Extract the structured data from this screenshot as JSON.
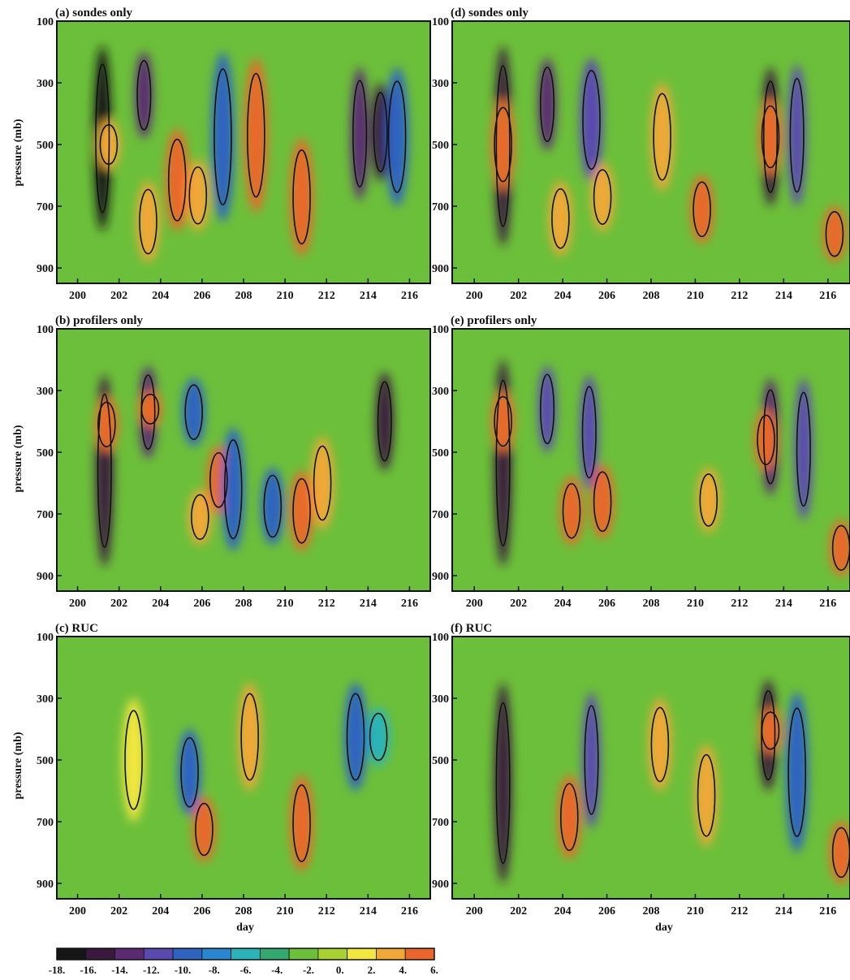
{
  "chart_data": [
    {
      "type": "heatmap",
      "title": "(a) sondes only",
      "xlabel": "",
      "ylabel": "pressure (mb)",
      "xlim": [
        199,
        217
      ],
      "ylim": [
        950,
        100
      ],
      "xticks": [
        "200",
        "202",
        "204",
        "206",
        "208",
        "210",
        "212",
        "214",
        "216"
      ],
      "yticks": [
        "100",
        "300",
        "500",
        "700",
        "900"
      ],
      "features": [
        {
          "day": 201.2,
          "p_top": 180,
          "p_bot": 780,
          "value": -18
        },
        {
          "day": 201.5,
          "p_top": 420,
          "p_bot": 580,
          "value": 4
        },
        {
          "day": 203.2,
          "p_top": 200,
          "p_bot": 480,
          "value": -14
        },
        {
          "day": 203.4,
          "p_top": 620,
          "p_bot": 880,
          "value": 5
        },
        {
          "day": 204.8,
          "p_top": 450,
          "p_bot": 780,
          "value": 6
        },
        {
          "day": 205.8,
          "p_top": 550,
          "p_bot": 780,
          "value": 5
        },
        {
          "day": 207.0,
          "p_top": 200,
          "p_bot": 750,
          "value": -10
        },
        {
          "day": 208.6,
          "p_top": 220,
          "p_bot": 720,
          "value": 6
        },
        {
          "day": 210.8,
          "p_top": 480,
          "p_bot": 860,
          "value": 6
        },
        {
          "day": 213.6,
          "p_top": 250,
          "p_bot": 680,
          "value": -14
        },
        {
          "day": 214.6,
          "p_top": 300,
          "p_bot": 620,
          "value": -16
        },
        {
          "day": 215.4,
          "p_top": 250,
          "p_bot": 700,
          "value": -10
        }
      ]
    },
    {
      "type": "heatmap",
      "title": "(b) profilers only",
      "xlabel": "",
      "ylabel": "pressure (mb)",
      "xlim": [
        199,
        217
      ],
      "ylim": [
        950,
        100
      ],
      "xticks": [
        "200",
        "202",
        "204",
        "206",
        "208",
        "210",
        "212",
        "214",
        "216"
      ],
      "yticks": [
        "100",
        "300",
        "500",
        "700",
        "900"
      ],
      "features": [
        {
          "day": 201.3,
          "p_top": 250,
          "p_bot": 870,
          "value": -16
        },
        {
          "day": 201.4,
          "p_top": 320,
          "p_bot": 500,
          "value": 6
        },
        {
          "day": 203.4,
          "p_top": 220,
          "p_bot": 520,
          "value": -14
        },
        {
          "day": 203.5,
          "p_top": 300,
          "p_bot": 420,
          "value": 6
        },
        {
          "day": 205.6,
          "p_top": 260,
          "p_bot": 480,
          "value": -10
        },
        {
          "day": 205.9,
          "p_top": 620,
          "p_bot": 800,
          "value": 5
        },
        {
          "day": 206.8,
          "p_top": 480,
          "p_bot": 700,
          "value": 6
        },
        {
          "day": 207.5,
          "p_top": 420,
          "p_bot": 820,
          "value": -9
        },
        {
          "day": 209.4,
          "p_top": 550,
          "p_bot": 800,
          "value": -9
        },
        {
          "day": 210.8,
          "p_top": 560,
          "p_bot": 820,
          "value": 6
        },
        {
          "day": 211.8,
          "p_top": 450,
          "p_bot": 750,
          "value": 5
        },
        {
          "day": 214.8,
          "p_top": 240,
          "p_bot": 560,
          "value": -16
        }
      ]
    },
    {
      "type": "heatmap",
      "title": "(c) RUC",
      "xlabel": "day",
      "ylabel": "pressure (mb)",
      "xlim": [
        199,
        217
      ],
      "ylim": [
        950,
        100
      ],
      "xticks": [
        "200",
        "202",
        "204",
        "206",
        "208",
        "210",
        "212",
        "214",
        "216"
      ],
      "yticks": [
        "100",
        "300",
        "500",
        "700",
        "900"
      ],
      "features": [
        {
          "day": 202.7,
          "p_top": 300,
          "p_bot": 700,
          "value": 3
        },
        {
          "day": 205.4,
          "p_top": 400,
          "p_bot": 680,
          "value": -9
        },
        {
          "day": 206.1,
          "p_top": 620,
          "p_bot": 830,
          "value": 6
        },
        {
          "day": 208.3,
          "p_top": 250,
          "p_bot": 600,
          "value": 5
        },
        {
          "day": 210.8,
          "p_top": 550,
          "p_bot": 860,
          "value": 6
        },
        {
          "day": 213.4,
          "p_top": 250,
          "p_bot": 600,
          "value": -9
        },
        {
          "day": 214.5,
          "p_top": 330,
          "p_bot": 520,
          "value": -6
        }
      ]
    },
    {
      "type": "heatmap",
      "title": "(d) sondes only",
      "xlabel": "",
      "ylabel": "",
      "xlim": [
        199,
        217
      ],
      "ylim": [
        950,
        100
      ],
      "xticks": [
        "200",
        "202",
        "204",
        "206",
        "208",
        "210",
        "212",
        "214",
        "216"
      ],
      "yticks": [
        "100",
        "300",
        "500",
        "700",
        "900"
      ],
      "features": [
        {
          "day": 201.3,
          "p_top": 180,
          "p_bot": 830,
          "value": -16
        },
        {
          "day": 201.3,
          "p_top": 350,
          "p_bot": 650,
          "value": 6
        },
        {
          "day": 203.3,
          "p_top": 220,
          "p_bot": 520,
          "value": -14
        },
        {
          "day": 203.9,
          "p_top": 620,
          "p_bot": 860,
          "value": 5
        },
        {
          "day": 205.3,
          "p_top": 220,
          "p_bot": 620,
          "value": -11
        },
        {
          "day": 205.8,
          "p_top": 560,
          "p_bot": 780,
          "value": 5
        },
        {
          "day": 208.5,
          "p_top": 300,
          "p_bot": 650,
          "value": 5
        },
        {
          "day": 210.3,
          "p_top": 600,
          "p_bot": 820,
          "value": 6
        },
        {
          "day": 213.4,
          "p_top": 250,
          "p_bot": 700,
          "value": -16
        },
        {
          "day": 213.4,
          "p_top": 350,
          "p_bot": 600,
          "value": 6
        },
        {
          "day": 214.6,
          "p_top": 240,
          "p_bot": 700,
          "value": -12
        },
        {
          "day": 216.3,
          "p_top": 700,
          "p_bot": 880,
          "value": 6
        }
      ]
    },
    {
      "type": "heatmap",
      "title": "(e) profilers only",
      "xlabel": "",
      "ylabel": "",
      "xlim": [
        199,
        217
      ],
      "ylim": [
        950,
        100
      ],
      "xticks": [
        "200",
        "202",
        "204",
        "206",
        "208",
        "210",
        "212",
        "214",
        "216"
      ],
      "yticks": [
        "100",
        "300",
        "500",
        "700",
        "900"
      ],
      "features": [
        {
          "day": 201.3,
          "p_top": 200,
          "p_bot": 870,
          "value": -16
        },
        {
          "day": 201.3,
          "p_top": 300,
          "p_bot": 500,
          "value": 6
        },
        {
          "day": 203.3,
          "p_top": 220,
          "p_bot": 500,
          "value": -12
        },
        {
          "day": 204.4,
          "p_top": 580,
          "p_bot": 800,
          "value": 6
        },
        {
          "day": 205.2,
          "p_top": 250,
          "p_bot": 620,
          "value": -12
        },
        {
          "day": 205.8,
          "p_top": 540,
          "p_bot": 780,
          "value": 6
        },
        {
          "day": 210.6,
          "p_top": 550,
          "p_bot": 760,
          "value": 5
        },
        {
          "day": 213.4,
          "p_top": 260,
          "p_bot": 640,
          "value": -14
        },
        {
          "day": 213.2,
          "p_top": 360,
          "p_bot": 560,
          "value": 6
        },
        {
          "day": 214.9,
          "p_top": 260,
          "p_bot": 720,
          "value": -12
        },
        {
          "day": 216.6,
          "p_top": 720,
          "p_bot": 900,
          "value": 6
        }
      ]
    },
    {
      "type": "heatmap",
      "title": "(f) RUC",
      "xlabel": "day",
      "ylabel": "",
      "xlim": [
        199,
        217
      ],
      "ylim": [
        950,
        100
      ],
      "xticks": [
        "200",
        "202",
        "204",
        "206",
        "208",
        "210",
        "212",
        "214",
        "216"
      ],
      "yticks": [
        "100",
        "300",
        "500",
        "700",
        "900"
      ],
      "features": [
        {
          "day": 201.3,
          "p_top": 250,
          "p_bot": 900,
          "value": -16
        },
        {
          "day": 204.3,
          "p_top": 550,
          "p_bot": 820,
          "value": 6
        },
        {
          "day": 205.3,
          "p_top": 280,
          "p_bot": 720,
          "value": -12
        },
        {
          "day": 208.4,
          "p_top": 300,
          "p_bot": 600,
          "value": 5
        },
        {
          "day": 210.5,
          "p_top": 450,
          "p_bot": 780,
          "value": 4
        },
        {
          "day": 213.3,
          "p_top": 240,
          "p_bot": 600,
          "value": -16
        },
        {
          "day": 213.4,
          "p_top": 330,
          "p_bot": 480,
          "value": 6
        },
        {
          "day": 214.6,
          "p_top": 280,
          "p_bot": 800,
          "value": -10
        },
        {
          "day": 216.6,
          "p_top": 700,
          "p_bot": 900,
          "value": 6
        }
      ]
    }
  ],
  "colorbar": {
    "ticks": [
      "-18.",
      "-16.",
      "-14.",
      "-12.",
      "-10.",
      "-8.",
      "-6.",
      "-4.",
      "-2.",
      "0.",
      "2.",
      "4.",
      "6."
    ],
    "values": [
      -18,
      -16,
      -14,
      -12,
      -10,
      -8,
      -6,
      -4,
      -2,
      0,
      2,
      4,
      6
    ],
    "colors": [
      "#161616",
      "#3a1a3c",
      "#5a2a72",
      "#5a4ab0",
      "#2f63c0",
      "#2a86cf",
      "#2bb3b8",
      "#35a870",
      "#6cbf3a",
      "#a8d232",
      "#f2e640",
      "#f0a838",
      "#e9672c"
    ]
  },
  "background_value": -2.5
}
